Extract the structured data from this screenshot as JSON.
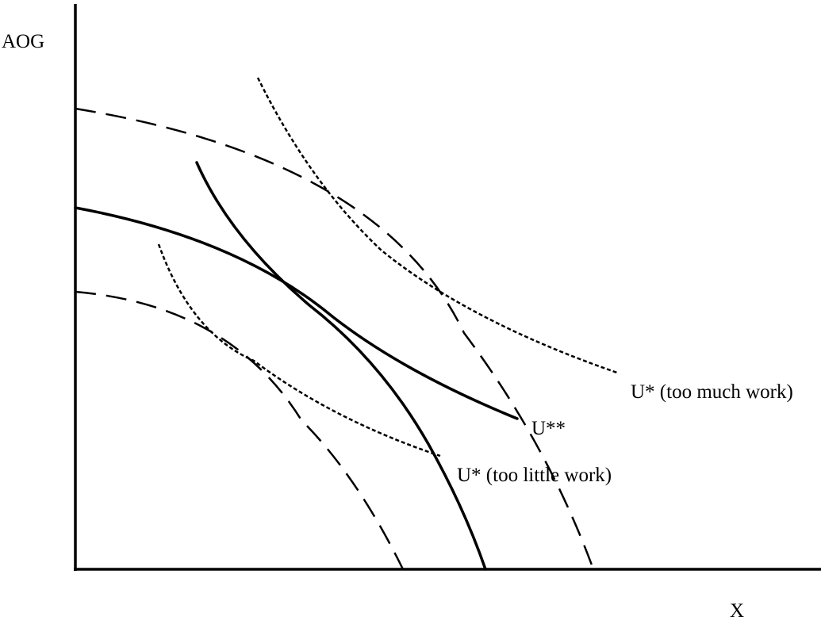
{
  "axes": {
    "y_label": "AOG",
    "x_label": "X"
  },
  "curve_labels": {
    "u_too_much": "U* (too much work)",
    "u_star_star": "U**",
    "u_too_little": "U* (too little work)"
  }
}
